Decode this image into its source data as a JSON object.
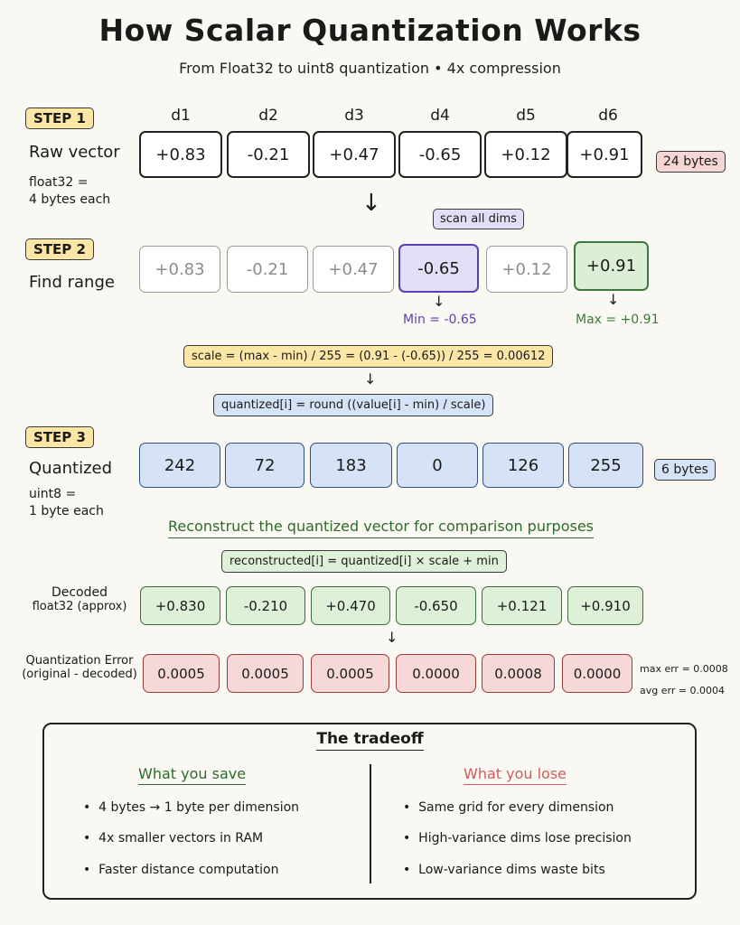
{
  "title": "How Scalar Quantization Works",
  "subtitle": "From Float32 to uint8 quantization • 4x compression",
  "dims": [
    "d1",
    "d2",
    "d3",
    "d4",
    "d5",
    "d6"
  ],
  "step1": {
    "badge": "STEP 1",
    "label": "Raw vector",
    "note_line1": "float32 =",
    "note_line2": "4 bytes each",
    "values": [
      "+0.83",
      "-0.21",
      "+0.47",
      "-0.65",
      "+0.12",
      "+0.91"
    ],
    "bytes": "24 bytes"
  },
  "step2": {
    "badge": "STEP 2",
    "label": "Find range",
    "scan_tag": "scan all dims",
    "values": [
      "+0.83",
      "-0.21",
      "+0.47",
      "-0.65",
      "+0.12",
      "+0.91"
    ],
    "min_label": "Min = -0.65",
    "max_label": "Max = +0.91",
    "colors": {
      "min": "#5a3fb2",
      "max": "#3b7a3b"
    }
  },
  "formulas": {
    "scale": "scale = (max - min) / 255 = (0.91 - (-0.65)) / 255 = 0.00612",
    "quantize": "quantized[i] = round ((value[i] - min) / scale)",
    "reconstruct": "reconstructed[i] = quantized[i] × scale + min"
  },
  "step3": {
    "badge": "STEP 3",
    "label": "Quantized",
    "note_line1": "uint8 =",
    "note_line2": "1 byte each",
    "values": [
      "242",
      "72",
      "183",
      "0",
      "126",
      "255"
    ],
    "bytes": "6 bytes"
  },
  "reconstruct_heading": "Reconstruct the quantized vector for comparison purposes",
  "decoded": {
    "label_line1": "Decoded",
    "label_line2": "float32 (approx)",
    "values": [
      "+0.830",
      "-0.210",
      "+0.470",
      "-0.650",
      "+0.121",
      "+0.910"
    ]
  },
  "error": {
    "label_line1": "Quantization Error",
    "label_line2": "(original - decoded)",
    "values": [
      "0.0005",
      "0.0005",
      "0.0005",
      "0.0000",
      "0.0008",
      "0.0000"
    ],
    "max_err": "max err = 0.0008",
    "avg_err": "avg err = 0.0004"
  },
  "tradeoff": {
    "title": "The tradeoff",
    "save_heading": "What you save",
    "save_items": [
      "4 bytes → 1 byte per dimension",
      "4x smaller vectors in RAM",
      "Faster distance computation"
    ],
    "lose_heading": "What you lose",
    "lose_items": [
      "Same grid for every dimension",
      "High-variance dims lose precision",
      "Low-variance dims waste bits"
    ],
    "colors": {
      "save": "#2e6b2e",
      "lose": "#d05c5c"
    }
  }
}
